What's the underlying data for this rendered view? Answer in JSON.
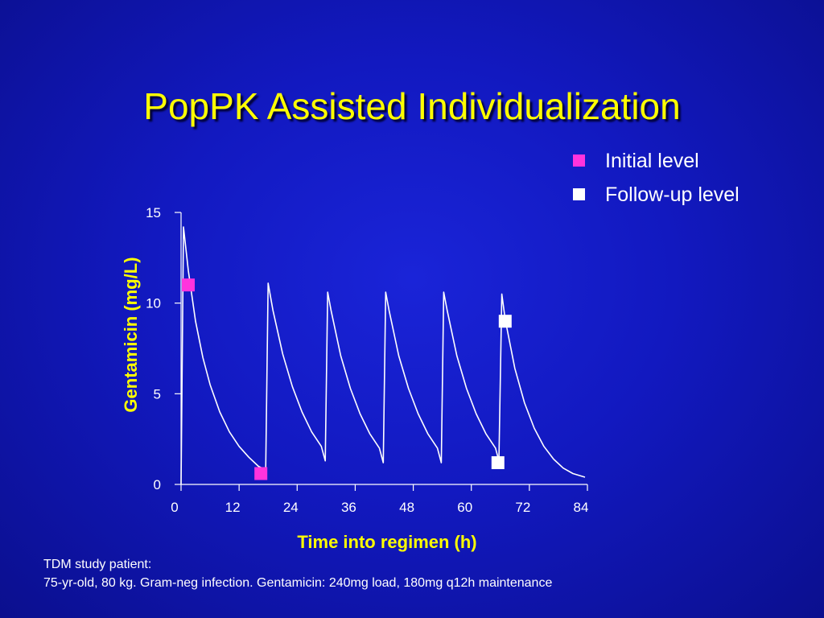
{
  "slide": {
    "title": "PopPK Assisted Individualization",
    "footnote_line1": "TDM study patient:",
    "footnote_line2": "75-yr-old, 80 kg. Gram-neg infection. Gentamicin: 240mg load, 180mg q12h maintenance"
  },
  "colors": {
    "background": "#1219c0",
    "title": "#ffff00",
    "axis_label": "#ffff00",
    "curve": "#ffffff",
    "initial_marker": "#ff33dd",
    "followup_marker": "#ffffff"
  },
  "chart_data": {
    "type": "line",
    "title": "",
    "xlabel": "Time into regimen (h)",
    "ylabel": "Gentamicin (mg/L)",
    "xlim": [
      0,
      84
    ],
    "ylim": [
      0,
      15
    ],
    "xticks": [
      0,
      12,
      24,
      36,
      48,
      60,
      72,
      84
    ],
    "yticks": [
      0,
      5,
      10,
      15
    ],
    "grid": false,
    "legend_position": "top-right",
    "legend": [
      {
        "label": "Initial level",
        "color": "#ff33dd"
      },
      {
        "label": "Follow-up level",
        "color": "#ffffff"
      }
    ],
    "series": [
      {
        "type": "line",
        "color": "#ffffff",
        "x": [
          0,
          0.5,
          1.5,
          3,
          4.5,
          6,
          8,
          10,
          12,
          14,
          16,
          17.5,
          18,
          19,
          21,
          23,
          25,
          27,
          29,
          29.8,
          30.3,
          31,
          33,
          35,
          37,
          39,
          41,
          41.8,
          42.3,
          43,
          45,
          47,
          49,
          51,
          53,
          53.8,
          54.3,
          55,
          57,
          59,
          61,
          63,
          65,
          65.7,
          66.3,
          67,
          69,
          71,
          73,
          75,
          77,
          79,
          81,
          83.5
        ],
        "y": [
          0,
          14.2,
          11.8,
          9.0,
          7.0,
          5.5,
          4.0,
          2.9,
          2.1,
          1.5,
          1.0,
          0.8,
          11.1,
          9.6,
          7.2,
          5.4,
          4.0,
          2.9,
          2.1,
          1.3,
          10.6,
          9.6,
          7.1,
          5.3,
          3.9,
          2.8,
          2.0,
          1.2,
          10.6,
          9.6,
          7.1,
          5.3,
          3.9,
          2.8,
          2.0,
          1.2,
          10.6,
          9.6,
          7.1,
          5.3,
          3.9,
          2.8,
          2.0,
          1.3,
          10.5,
          9.1,
          6.4,
          4.5,
          3.1,
          2.1,
          1.4,
          0.9,
          0.6,
          0.4
        ]
      },
      {
        "name": "Initial level",
        "type": "scatter",
        "color": "#ff33dd",
        "x": [
          1.5,
          16.5
        ],
        "y": [
          11.0,
          0.6
        ]
      },
      {
        "name": "Follow-up level",
        "type": "scatter",
        "color": "#ffffff",
        "x": [
          65.5,
          67
        ],
        "y": [
          1.2,
          9.0
        ]
      }
    ]
  }
}
